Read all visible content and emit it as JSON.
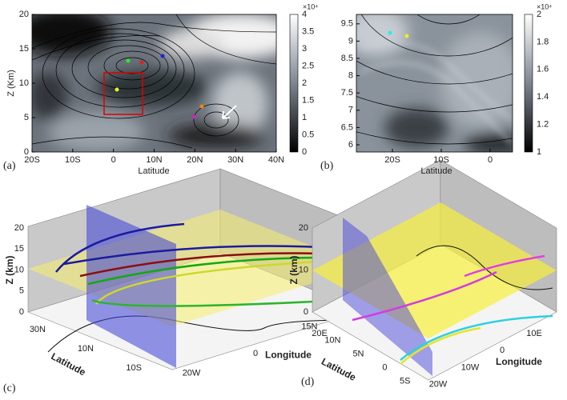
{
  "panels": [
    {
      "label": "(a)",
      "x_label": "Latitude",
      "y_label": "Z (Km)",
      "x_ticks": [
        "20S",
        "10S",
        "0",
        "10N",
        "20N",
        "30N",
        "40N"
      ],
      "y_ticks": [
        "0",
        "5",
        "10",
        "15",
        "20"
      ],
      "colorbar_ticks": [
        "0",
        "0.5",
        "1",
        "1.5",
        "2",
        "2.5",
        "3",
        "3.5",
        "4"
      ],
      "colorbar_exponent": "×10⁴"
    },
    {
      "label": "(b)",
      "x_label": "Latitude",
      "x_ticks": [
        "20S",
        "10S",
        "0"
      ],
      "y_ticks": [
        "6",
        "6.5",
        "7",
        "7.5",
        "8",
        "8.5",
        "9",
        "9.5"
      ],
      "colorbar_ticks": [
        "1",
        "1.2",
        "1.4",
        "1.6",
        "1.8",
        "2"
      ],
      "colorbar_exponent": "×10⁴"
    },
    {
      "label": "(c)",
      "z_label": "Z (km)",
      "z_ticks": [
        "0",
        "5",
        "10",
        "15",
        "20"
      ],
      "lat_label": "Latitude",
      "lat_ticks": [
        "30N",
        "10N",
        "10S"
      ],
      "lon_label": "Longitude",
      "lon_ticks": [
        "20W",
        "0",
        "20E"
      ]
    },
    {
      "label": "(d)",
      "z_label": "Z (km)",
      "z_ticks": [
        "0",
        "10",
        "20"
      ],
      "lat_label": "Latitude",
      "lat_ticks": [
        "15N",
        "10N",
        "5N",
        "0",
        "5S"
      ],
      "lon_label": "Longitude",
      "lon_ticks": [
        "20W",
        "10W",
        "0",
        "10E"
      ]
    }
  ]
}
